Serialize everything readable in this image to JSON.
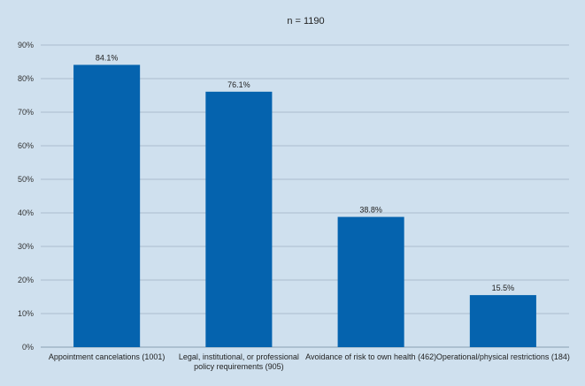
{
  "chart_data": {
    "type": "bar",
    "title": "n = 1190",
    "xlabel": "",
    "ylabel": "",
    "categories": [
      [
        "Appointment cancelations (1001)"
      ],
      [
        "Legal, institutional, or professional",
        "policy requirements (905)"
      ],
      [
        "Avoidance of risk to own health (462)"
      ],
      [
        "Operational/physical restrictions (184)"
      ]
    ],
    "values": [
      84.1,
      76.1,
      38.8,
      15.5
    ],
    "value_labels": [
      "84.1%",
      "76.1%",
      "38.8%",
      "15.5%"
    ],
    "ylim": [
      0,
      90
    ],
    "yticks": [
      0,
      10,
      20,
      30,
      40,
      50,
      60,
      70,
      80,
      90
    ],
    "ytick_labels": [
      "0%",
      "10%",
      "20%",
      "30%",
      "40%",
      "50%",
      "60%",
      "70%",
      "80%",
      "90%"
    ],
    "grid": true,
    "legend": "none",
    "colors": {
      "bar": "#0563ae",
      "background": "#cfe0ee",
      "grid": "#9fb2c2"
    }
  }
}
